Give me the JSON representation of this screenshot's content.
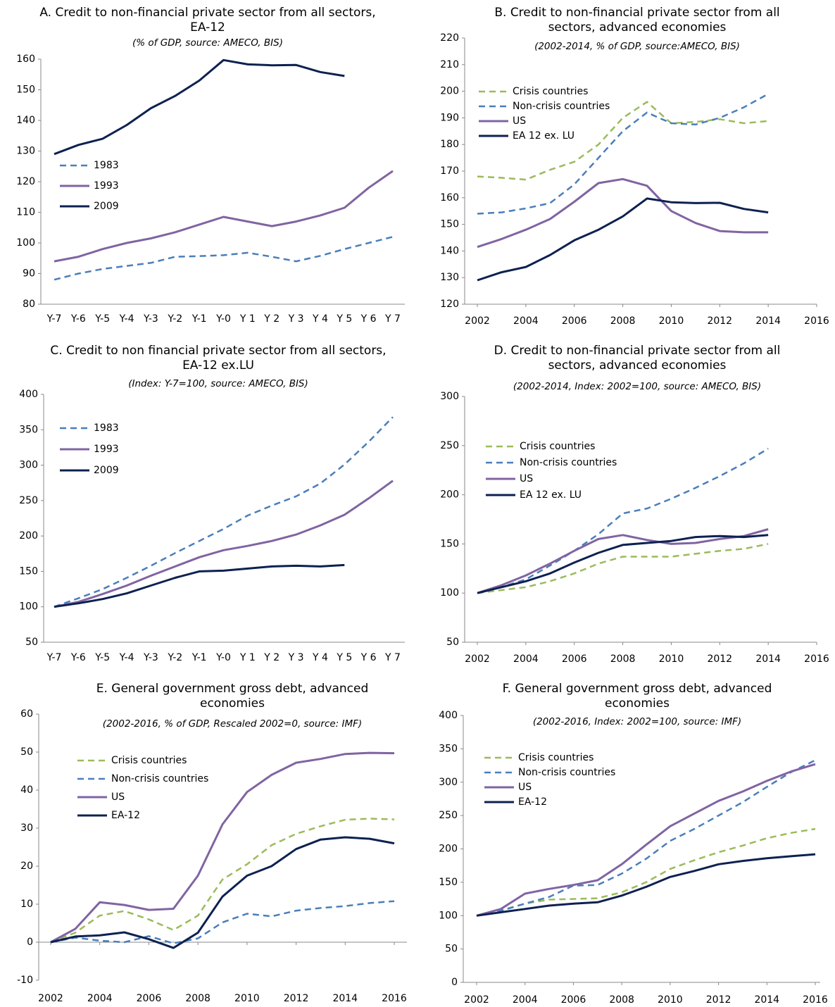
{
  "chart_data": [
    {
      "type": "line",
      "title": "A. Credit to non-financial private sector from all sectors, EA-12",
      "subtitle": "(% of GDP, source: AMECO, BIS)",
      "categories": [
        "Y-7",
        "Y-6",
        "Y-5",
        "Y-4",
        "Y-3",
        "Y-2",
        "Y-1",
        "Y-0",
        "Y 1",
        "Y 2",
        "Y 3",
        "Y 4",
        "Y 5",
        "Y 6",
        "Y 7"
      ],
      "ylim": [
        80,
        160
      ],
      "yticks": [
        80,
        90,
        100,
        110,
        120,
        130,
        140,
        150,
        160
      ],
      "series": [
        {
          "name": "1983",
          "color": "#4a7ebb",
          "dashed": true,
          "values": [
            88,
            90,
            91.5,
            92.5,
            93.5,
            95.5,
            95.7,
            96,
            96.8,
            95.5,
            94,
            95.8,
            98,
            100,
            102
          ]
        },
        {
          "name": "1993",
          "color": "#8064a2",
          "dashed": false,
          "values": [
            94,
            95.5,
            98,
            100,
            101.5,
            103.5,
            106,
            108.5,
            107,
            105.5,
            107,
            109,
            111.5,
            118,
            123.5
          ]
        },
        {
          "name": "2009",
          "color": "#0d2151",
          "dashed": false,
          "values": [
            129,
            132,
            134,
            138.5,
            144,
            148,
            153,
            159.7,
            158.3,
            158,
            158.1,
            155.8,
            154.5,
            null,
            null
          ]
        }
      ]
    },
    {
      "type": "line",
      "title": "B. Credit to non-financial private sector from all sectors, advanced economies",
      "subtitle": "(2002-2014, % of GDP, source:AMECO, BIS)",
      "x": [
        2002,
        2003,
        2004,
        2005,
        2006,
        2007,
        2008,
        2009,
        2010,
        2011,
        2012,
        2013,
        2014
      ],
      "xlim": [
        2002,
        2016
      ],
      "xticks": [
        2002,
        2004,
        2006,
        2008,
        2010,
        2012,
        2014,
        2016
      ],
      "ylim": [
        120,
        220
      ],
      "yticks": [
        120,
        130,
        140,
        150,
        160,
        170,
        180,
        190,
        200,
        210,
        220
      ],
      "series": [
        {
          "name": "Crisis countries",
          "color": "#9bbb59",
          "dashed": true,
          "values": [
            168,
            167.5,
            166.8,
            170.5,
            173.5,
            180,
            190,
            196,
            188,
            188.5,
            189.5,
            188,
            188.8
          ]
        },
        {
          "name": "Non-crisis countries",
          "color": "#4a7ebb",
          "dashed": true,
          "values": [
            154,
            154.5,
            156,
            158,
            165,
            175,
            185,
            192,
            188,
            187.5,
            190,
            194,
            199
          ]
        },
        {
          "name": "US",
          "color": "#8064a2",
          "dashed": false,
          "values": [
            141.5,
            144.5,
            148,
            152,
            158.5,
            165.5,
            167,
            164.5,
            155,
            150.5,
            147.5,
            147,
            147
          ]
        },
        {
          "name": "EA 12 ex. LU",
          "color": "#0d2151",
          "dashed": false,
          "values": [
            129,
            132,
            134,
            138.5,
            144,
            148,
            153,
            159.7,
            158.3,
            158,
            158.1,
            155.8,
            154.5
          ]
        }
      ]
    },
    {
      "type": "line",
      "title": "C. Credit to non financial private sector from all sectors, EA-12 ex.LU",
      "subtitle": "(Index: Y-7=100, source: AMECO, BIS)",
      "categories": [
        "Y-7",
        "Y-6",
        "Y-5",
        "Y-4",
        "Y-3",
        "Y-2",
        "Y-1",
        "Y-0",
        "Y 1",
        "Y 2",
        "Y 3",
        "Y 4",
        "Y 5",
        "Y 6",
        "Y 7"
      ],
      "ylim": [
        50,
        400
      ],
      "yticks": [
        50,
        100,
        150,
        200,
        250,
        300,
        350,
        400
      ],
      "series": [
        {
          "name": "1983",
          "color": "#4a7ebb",
          "dashed": true,
          "values": [
            100,
            112,
            125,
            141,
            158,
            176,
            193,
            210,
            229,
            243,
            256,
            274,
            301,
            333,
            368
          ]
        },
        {
          "name": "1993",
          "color": "#8064a2",
          "dashed": false,
          "values": [
            100,
            107,
            118,
            130,
            144,
            157,
            170,
            180,
            186,
            193,
            202,
            215,
            230,
            253,
            278
          ]
        },
        {
          "name": "2009",
          "color": "#0d2151",
          "dashed": false,
          "values": [
            100,
            105,
            111,
            119,
            130,
            141,
            150,
            151,
            154,
            157,
            158,
            157,
            159,
            null,
            null
          ]
        }
      ]
    },
    {
      "type": "line",
      "title": "D. Credit to non-financial private sector from all sectors, advanced economies",
      "subtitle": "(2002-2014, Index: 2002=100, source: AMECO, BIS)",
      "x": [
        2002,
        2003,
        2004,
        2005,
        2006,
        2007,
        2008,
        2009,
        2010,
        2011,
        2012,
        2013,
        2014
      ],
      "xlim": [
        2002,
        2016
      ],
      "xticks": [
        2002,
        2004,
        2006,
        2008,
        2010,
        2012,
        2014,
        2016
      ],
      "ylim": [
        50,
        300
      ],
      "yticks": [
        50,
        100,
        150,
        200,
        250,
        300
      ],
      "series": [
        {
          "name": "Crisis countries",
          "color": "#9bbb59",
          "dashed": true,
          "values": [
            100,
            103,
            106,
            112,
            120,
            130,
            137,
            137,
            137,
            140,
            143,
            145,
            150
          ]
        },
        {
          "name": "Non-crisis countries",
          "color": "#4a7ebb",
          "dashed": true,
          "values": [
            100,
            106,
            114,
            128,
            143,
            160,
            181,
            186,
            196,
            207,
            219,
            232,
            247
          ]
        },
        {
          "name": "US",
          "color": "#8064a2",
          "dashed": false,
          "values": [
            100,
            108,
            118,
            130,
            143,
            155,
            159,
            154,
            150,
            151,
            155,
            158,
            165
          ]
        },
        {
          "name": "EA 12 ex. LU",
          "color": "#0d2151",
          "dashed": false,
          "values": [
            100,
            106,
            112,
            120,
            131,
            141,
            149,
            151,
            153,
            157,
            158,
            157,
            159
          ]
        }
      ]
    },
    {
      "type": "line",
      "title": "E. General government gross debt, advanced economies",
      "subtitle": "(2002-2016, % of GDP, Rescaled 2002=0, source: IMF)",
      "x": [
        2002,
        2003,
        2004,
        2005,
        2006,
        2007,
        2008,
        2009,
        2010,
        2011,
        2012,
        2013,
        2014,
        2015,
        2016
      ],
      "xlim": [
        2002,
        2016
      ],
      "xticks": [
        2002,
        2004,
        2006,
        2008,
        2010,
        2012,
        2014,
        2016
      ],
      "ylim": [
        -10,
        60
      ],
      "yticks": [
        -10,
        0,
        10,
        20,
        30,
        40,
        50,
        60
      ],
      "series": [
        {
          "name": "Crisis countries",
          "color": "#9bbb59",
          "dashed": true,
          "values": [
            0,
            2.5,
            7,
            8.2,
            6,
            3.2,
            7,
            16.5,
            20.5,
            25.5,
            28.5,
            30.5,
            32.2,
            32.5,
            32.3
          ]
        },
        {
          "name": "Non-crisis countries",
          "color": "#4a7ebb",
          "dashed": true,
          "values": [
            0,
            1.2,
            0.4,
            0,
            1.6,
            -0.3,
            1,
            5.2,
            7.5,
            6.8,
            8.3,
            9,
            9.5,
            10.3,
            10.8
          ]
        },
        {
          "name": "US",
          "color": "#8064a2",
          "dashed": false,
          "values": [
            0,
            3.5,
            10.5,
            9.8,
            8.5,
            8.8,
            17.5,
            31,
            39.5,
            44,
            47.2,
            48.2,
            49.5,
            49.8,
            49.7
          ]
        },
        {
          "name": "EA-12",
          "color": "#0d2151",
          "dashed": false,
          "values": [
            0,
            1.5,
            1.8,
            2.6,
            0.8,
            -1.5,
            2.5,
            12,
            17.5,
            20,
            24.5,
            27,
            27.6,
            27.2,
            26
          ]
        }
      ]
    },
    {
      "type": "line",
      "title": "F. General government gross debt, advanced economies",
      "subtitle": "(2002-2016, Index: 2002=100, source: IMF)",
      "x": [
        2002,
        2003,
        2004,
        2005,
        2006,
        2007,
        2008,
        2009,
        2010,
        2011,
        2012,
        2013,
        2014,
        2015,
        2016
      ],
      "xlim": [
        2002,
        2016
      ],
      "xticks": [
        2002,
        2004,
        2006,
        2008,
        2010,
        2012,
        2014,
        2016
      ],
      "ylim": [
        0,
        400
      ],
      "yticks": [
        0,
        50,
        100,
        150,
        200,
        250,
        300,
        350,
        400
      ],
      "series": [
        {
          "name": "Crisis countries",
          "color": "#9bbb59",
          "dashed": true,
          "values": [
            100,
            108,
            118,
            124,
            125,
            126,
            135,
            150,
            170,
            183,
            195,
            205,
            216,
            224,
            230
          ]
        },
        {
          "name": "Non-crisis countries",
          "color": "#4a7ebb",
          "dashed": true,
          "values": [
            100,
            107,
            118,
            128,
            145,
            146,
            163,
            185,
            212,
            230,
            250,
            270,
            293,
            315,
            333
          ]
        },
        {
          "name": "US",
          "color": "#8064a2",
          "dashed": false,
          "values": [
            100,
            110,
            133,
            140,
            146,
            153,
            177,
            206,
            234,
            253,
            272,
            286,
            302,
            316,
            327
          ]
        },
        {
          "name": "EA-12",
          "color": "#0d2151",
          "dashed": false,
          "values": [
            100,
            105,
            110,
            115,
            118,
            120,
            130,
            143,
            158,
            167,
            177,
            182,
            186,
            189,
            192
          ]
        }
      ]
    }
  ]
}
